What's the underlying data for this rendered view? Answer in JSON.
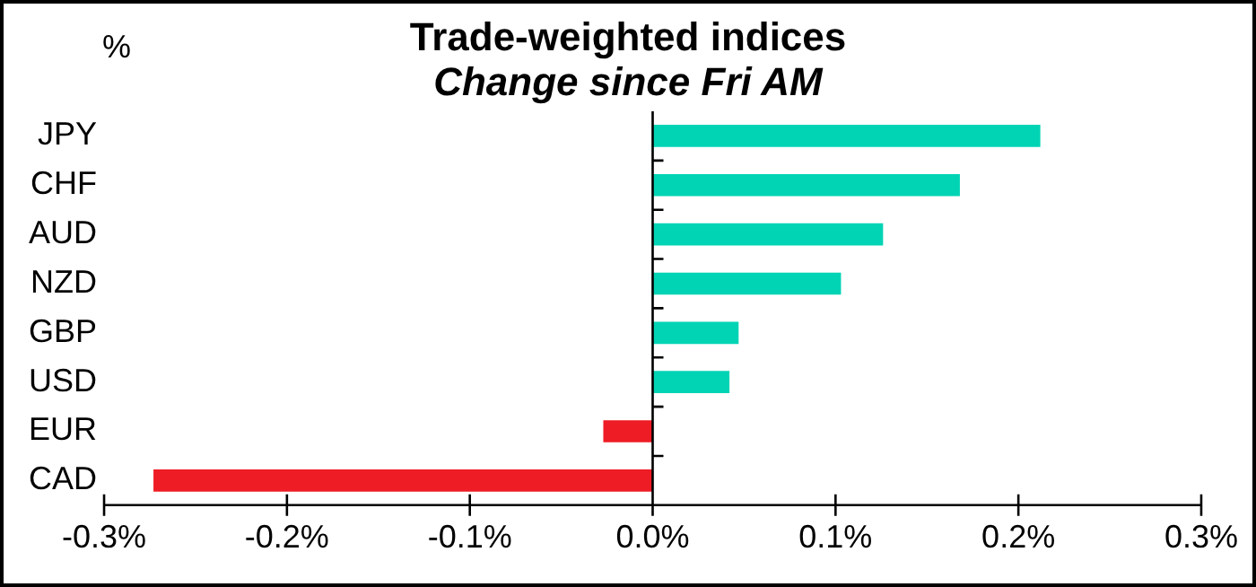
{
  "chart_data": {
    "type": "bar",
    "orientation": "horizontal",
    "title": "Trade-weighted indices",
    "subtitle": "Change since Fri AM",
    "ylabel": "%",
    "categories": [
      "JPY",
      "CHF",
      "AUD",
      "NZD",
      "GBP",
      "USD",
      "EUR",
      "CAD"
    ],
    "values": [
      0.212,
      0.168,
      0.126,
      0.103,
      0.047,
      0.042,
      -0.027,
      -0.273
    ],
    "colors": [
      "#00d4b4",
      "#00d4b4",
      "#00d4b4",
      "#00d4b4",
      "#00d4b4",
      "#00d4b4",
      "#ee1c25",
      "#ee1c25"
    ],
    "xlim": [
      -0.3,
      0.3
    ],
    "xticks": [
      {
        "value": -0.3,
        "label": "-0.3%"
      },
      {
        "value": -0.2,
        "label": "-0.2%"
      },
      {
        "value": -0.1,
        "label": "-0.1%"
      },
      {
        "value": 0,
        "label": "0.0%"
      },
      {
        "value": 0.1,
        "label": "0.1%"
      },
      {
        "value": 0.2,
        "label": "0.2%"
      },
      {
        "value": 0.3,
        "label": "0.3%"
      }
    ],
    "legend": false
  }
}
